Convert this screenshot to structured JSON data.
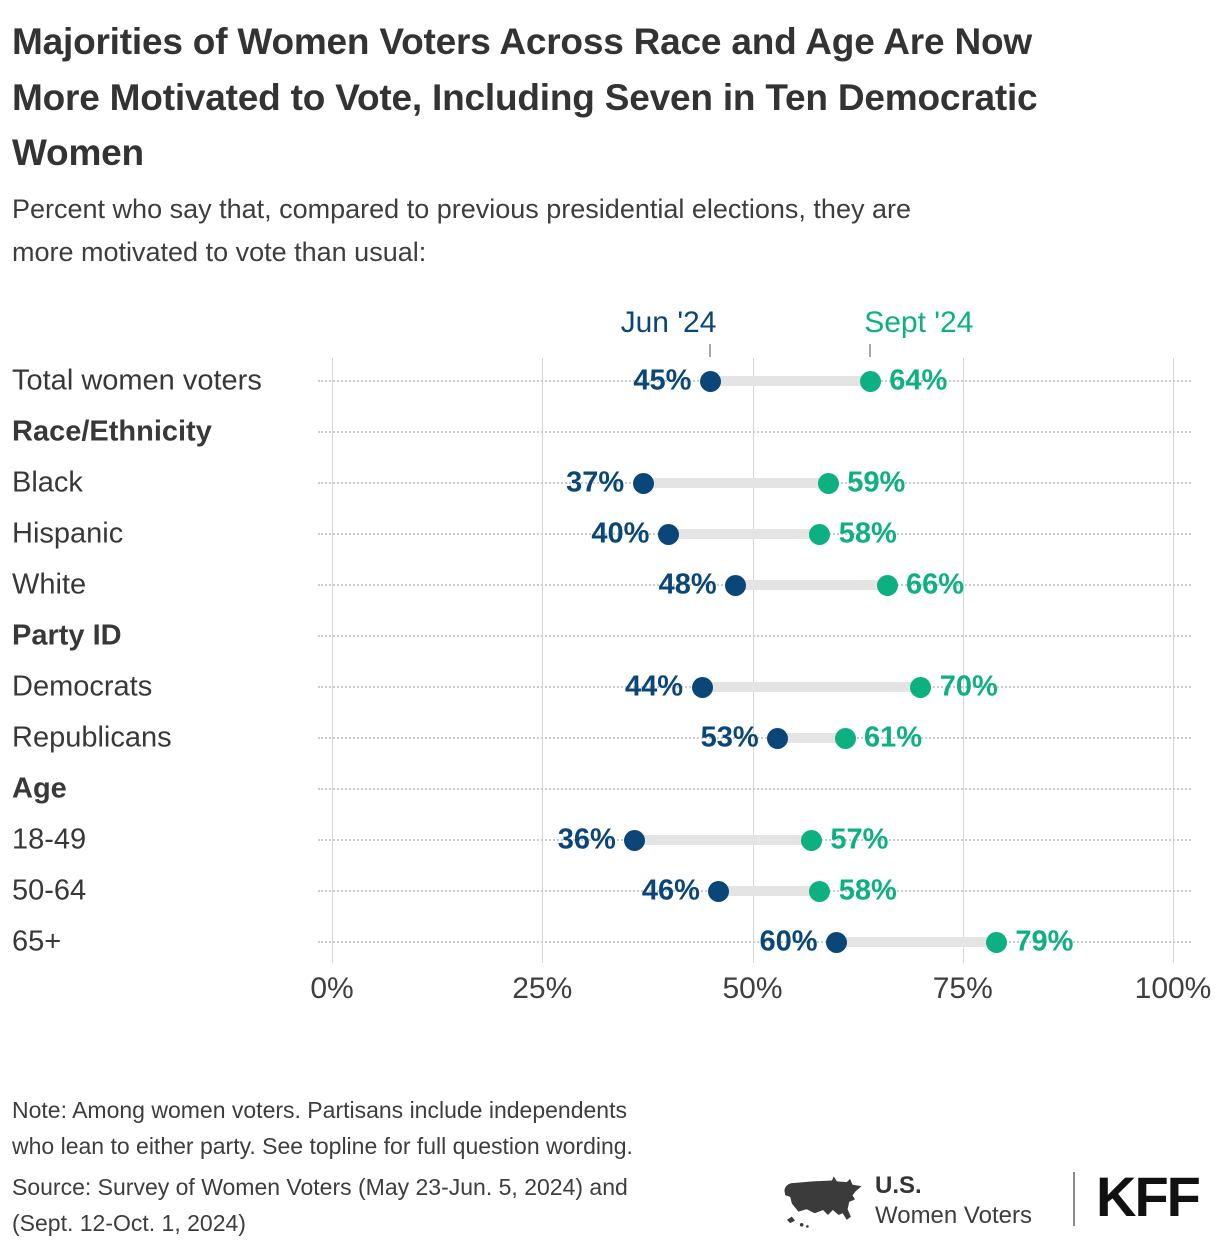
{
  "title": "Majorities of Women Voters Across Race and Age Are Now\nMore Motivated to Vote, Including Seven in Ten Democratic\nWomen",
  "subtitle": "Percent who say that, compared to previous presidential elections, they are\nmore motivated to vote than usual:",
  "legend": {
    "jun_label": "Jun '24",
    "sept_label": "Sept '24"
  },
  "colors": {
    "jun": "#0A4678",
    "sept": "#0DB081",
    "connector": "#E4E4E4",
    "grid": "#D5D5D5",
    "row_dotted": "#CCCCCC",
    "axis_text": "#3F3F3F",
    "label_text": "#383838",
    "legend_tick": "#A6A6A6"
  },
  "chart_data": {
    "type": "dumbbell",
    "title": "Percent who say that, compared to previous presidential elections, they are more motivated to vote than usual",
    "series": [
      {
        "name": "Jun '24",
        "color": "#0A4678"
      },
      {
        "name": "Sept '24",
        "color": "#0DB081"
      }
    ],
    "x_axis": {
      "min": 0,
      "max": 100,
      "ticks": [
        "0%",
        "25%",
        "50%",
        "75%",
        "100%"
      ],
      "grid": "on"
    },
    "legend_position": "top",
    "rows": [
      {
        "label": "Total women voters",
        "type": "data",
        "jun": 45,
        "sept": 64
      },
      {
        "label": "Race/Ethnicity",
        "type": "header"
      },
      {
        "label": "Black",
        "type": "data",
        "jun": 37,
        "sept": 59
      },
      {
        "label": "Hispanic",
        "type": "data",
        "jun": 40,
        "sept": 58
      },
      {
        "label": "White",
        "type": "data",
        "jun": 48,
        "sept": 66
      },
      {
        "label": "Party ID",
        "type": "header"
      },
      {
        "label": "Democrats",
        "type": "data",
        "jun": 44,
        "sept": 70
      },
      {
        "label": "Republicans",
        "type": "data",
        "jun": 53,
        "sept": 61
      },
      {
        "label": "Age",
        "type": "header"
      },
      {
        "label": "18-49",
        "type": "data",
        "jun": 36,
        "sept": 57
      },
      {
        "label": "50-64",
        "type": "data",
        "jun": 46,
        "sept": 58
      },
      {
        "label": "65+",
        "type": "data",
        "jun": 60,
        "sept": 79
      }
    ]
  },
  "note": "Note: Among women voters. Partisans include independents\nwho lean to either party. See topline for full question wording.",
  "source": "Source: Survey of Women Voters (May 23-Jun. 5, 2024) and\n(Sept. 12-Oct. 1, 2024)",
  "branding": {
    "us": "U.S.",
    "women_voters": "Women Voters",
    "kff": "KFF"
  }
}
